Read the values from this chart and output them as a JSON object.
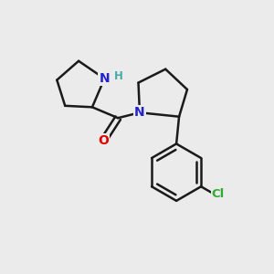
{
  "background_color": "#ebebeb",
  "bond_color": "#1a1a1a",
  "N_color": "#2222cc",
  "O_color": "#dd0000",
  "Cl_color": "#33aa33",
  "H_color": "#44aaaa",
  "figsize": [
    3.0,
    3.0
  ],
  "dpi": 100,
  "xlim": [
    0,
    10
  ],
  "ylim": [
    0,
    10
  ]
}
